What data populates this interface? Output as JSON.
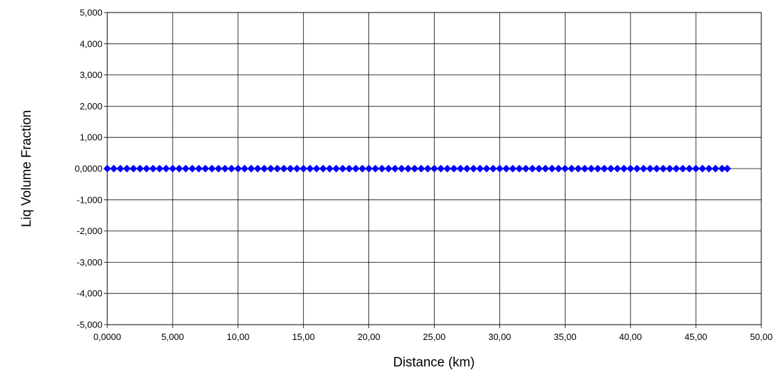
{
  "chart_data": {
    "type": "scatter",
    "title": "",
    "xlabel": "Distance (km)",
    "ylabel": "Liq Volume Fraction",
    "xlim": [
      0,
      50
    ],
    "ylim": [
      -5,
      5
    ],
    "grid": true,
    "x_tick_labels": [
      "0,0000",
      "5,000",
      "10,00",
      "15,00",
      "20,00",
      "25,00",
      "30,00",
      "35,00",
      "40,00",
      "45,00",
      "50,00"
    ],
    "y_tick_labels": [
      "5,000",
      "4,000",
      "3,000",
      "2,000",
      "1,000",
      "0,0000",
      "-1,000",
      "-2,000",
      "-3,000",
      "-4,000",
      "-5,000"
    ],
    "series": [
      {
        "color": "#0000ff",
        "marker": "diamond",
        "x": [
          0,
          0.5,
          1,
          1.5,
          2,
          2.5,
          3,
          3.5,
          4,
          4.5,
          5,
          5.5,
          6,
          6.5,
          7,
          7.5,
          8,
          8.5,
          9,
          9.5,
          10,
          10.5,
          11,
          11.5,
          12,
          12.5,
          13,
          13.5,
          14,
          14.5,
          15,
          15.5,
          16,
          16.5,
          17,
          17.5,
          18,
          18.5,
          19,
          19.5,
          20,
          20.5,
          21,
          21.5,
          22,
          22.5,
          23,
          23.5,
          24,
          24.5,
          25,
          25.5,
          26,
          26.5,
          27,
          27.5,
          28,
          28.5,
          29,
          29.5,
          30,
          30.5,
          31,
          31.5,
          32,
          32.5,
          33,
          33.5,
          34,
          34.5,
          35,
          35.5,
          36,
          36.5,
          37,
          37.5,
          38,
          38.5,
          39,
          39.5,
          40,
          40.5,
          41,
          41.5,
          42,
          42.5,
          43,
          43.5,
          44,
          44.5,
          45,
          45.5,
          46,
          46.5,
          47,
          47.4
        ],
        "y": [
          0,
          0,
          0,
          0,
          0,
          0,
          0,
          0,
          0,
          0,
          0,
          0,
          0,
          0,
          0,
          0,
          0,
          0,
          0,
          0,
          0,
          0,
          0,
          0,
          0,
          0,
          0,
          0,
          0,
          0,
          0,
          0,
          0,
          0,
          0,
          0,
          0,
          0,
          0,
          0,
          0,
          0,
          0,
          0,
          0,
          0,
          0,
          0,
          0,
          0,
          0,
          0,
          0,
          0,
          0,
          0,
          0,
          0,
          0,
          0,
          0,
          0,
          0,
          0,
          0,
          0,
          0,
          0,
          0,
          0,
          0,
          0,
          0,
          0,
          0,
          0,
          0,
          0,
          0,
          0,
          0,
          0,
          0,
          0,
          0,
          0,
          0,
          0,
          0,
          0,
          0,
          0,
          0,
          0,
          0,
          0
        ]
      }
    ]
  }
}
